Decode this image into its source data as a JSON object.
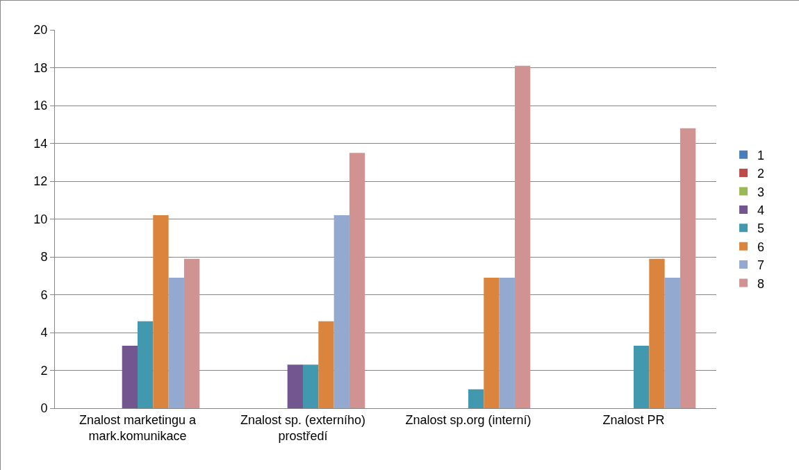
{
  "chart_data": {
    "type": "bar",
    "categories": [
      "Znalost marketingu a mark.komunikace",
      "Znalost sp. (externího) prostředí",
      "Znalost sp.org (interní)",
      "Znalost PR"
    ],
    "series": [
      {
        "name": "1",
        "color": "#4a7ebb",
        "values": [
          0,
          0,
          0,
          0
        ]
      },
      {
        "name": "2",
        "color": "#be4b48",
        "values": [
          0,
          0,
          0,
          0
        ]
      },
      {
        "name": "3",
        "color": "#98b954",
        "values": [
          0,
          0,
          0,
          0
        ]
      },
      {
        "name": "4",
        "color": "#735590",
        "values": [
          3.3,
          2.3,
          0,
          0
        ]
      },
      {
        "name": "5",
        "color": "#4198af",
        "values": [
          4.6,
          2.3,
          1.0,
          3.3
        ]
      },
      {
        "name": "6",
        "color": "#db843d",
        "values": [
          10.2,
          4.6,
          6.9,
          7.9
        ]
      },
      {
        "name": "7",
        "color": "#93a9cf",
        "values": [
          6.9,
          10.2,
          6.9,
          6.9
        ]
      },
      {
        "name": "8",
        "color": "#d19392",
        "values": [
          7.9,
          13.5,
          18.1,
          14.8
        ]
      }
    ],
    "ylim": [
      0,
      20
    ],
    "yticks": [
      0,
      2,
      4,
      6,
      8,
      10,
      12,
      14,
      16,
      18,
      20
    ],
    "grid": "y",
    "legend": "right"
  }
}
